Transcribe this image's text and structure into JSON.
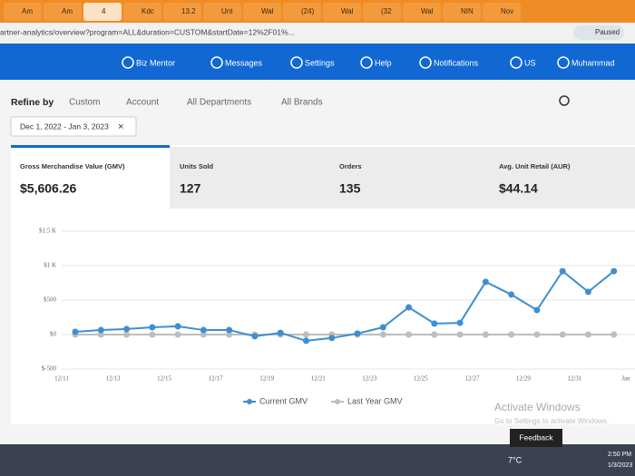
{
  "browser": {
    "tabs": [
      "Am",
      "Am",
      "4",
      "Kdc",
      "13.2",
      "Unt",
      "Wal",
      "(24)",
      "Wal",
      "(32",
      "Wal",
      "NIN",
      "Nov"
    ],
    "address": "artner-analytics/overview?program=ALL&duration=CUSTOM&startDate=12%2F01%...",
    "profile": "Paused"
  },
  "nav": {
    "items": [
      "Biz Mentor",
      "Messages",
      "Settings",
      "Help",
      "Notifications",
      "US",
      "Muhammad"
    ]
  },
  "filters": {
    "label": "Refine by",
    "items": [
      "Custom",
      "Account",
      "All Departments",
      "All Brands"
    ],
    "date_range": "Dec 1, 2022 - Jan 3, 2023"
  },
  "kpis": [
    {
      "label": "Gross Merchandise Value (GMV)",
      "value": "$5,606.26"
    },
    {
      "label": "Units Sold",
      "value": "127"
    },
    {
      "label": "Orders",
      "value": "135"
    },
    {
      "label": "Avg. Unit Retail (AUR)",
      "value": "$44.14"
    }
  ],
  "chart_data": {
    "type": "line",
    "categories": [
      "12/11",
      null,
      "12/13",
      null,
      "12/15",
      null,
      "12/17",
      null,
      "12/19",
      null,
      "12/21",
      null,
      "12/23",
      null,
      "12/25",
      null,
      "12/27",
      null,
      "12/29",
      null,
      "12/31",
      null,
      "Jan"
    ],
    "series": [
      {
        "name": "Current GMV",
        "color": "#3d8fd1",
        "values": [
          40,
          65,
          80,
          105,
          120,
          65,
          65,
          -25,
          25,
          -90,
          -50,
          15,
          105,
          395,
          160,
          170,
          765,
          580,
          355,
          920,
          620,
          920,
          null
        ]
      },
      {
        "name": "Last Year GMV",
        "color": "#bdbdbd",
        "values": [
          0,
          0,
          0,
          0,
          0,
          0,
          0,
          0,
          0,
          0,
          0,
          0,
          0,
          0,
          0,
          0,
          0,
          0,
          0,
          0,
          0,
          0,
          null
        ]
      }
    ],
    "ylim": [
      -500,
      1500
    ],
    "yticks": [
      {
        "value": -500,
        "label": "$-500"
      },
      {
        "value": 0,
        "label": "$0"
      },
      {
        "value": 500,
        "label": "$500"
      },
      {
        "value": 1000,
        "label": "$1 K"
      },
      {
        "value": 1500,
        "label": "$1.5 K"
      }
    ],
    "grid": true
  },
  "overlay": {
    "watermark": "Activate Windows",
    "watermark_sub": "Go to Settings to activate Windows.",
    "feedback": "Feedback"
  },
  "taskbar": {
    "weather": "7°C",
    "time": "2:50 PM",
    "date": "1/3/2023"
  }
}
